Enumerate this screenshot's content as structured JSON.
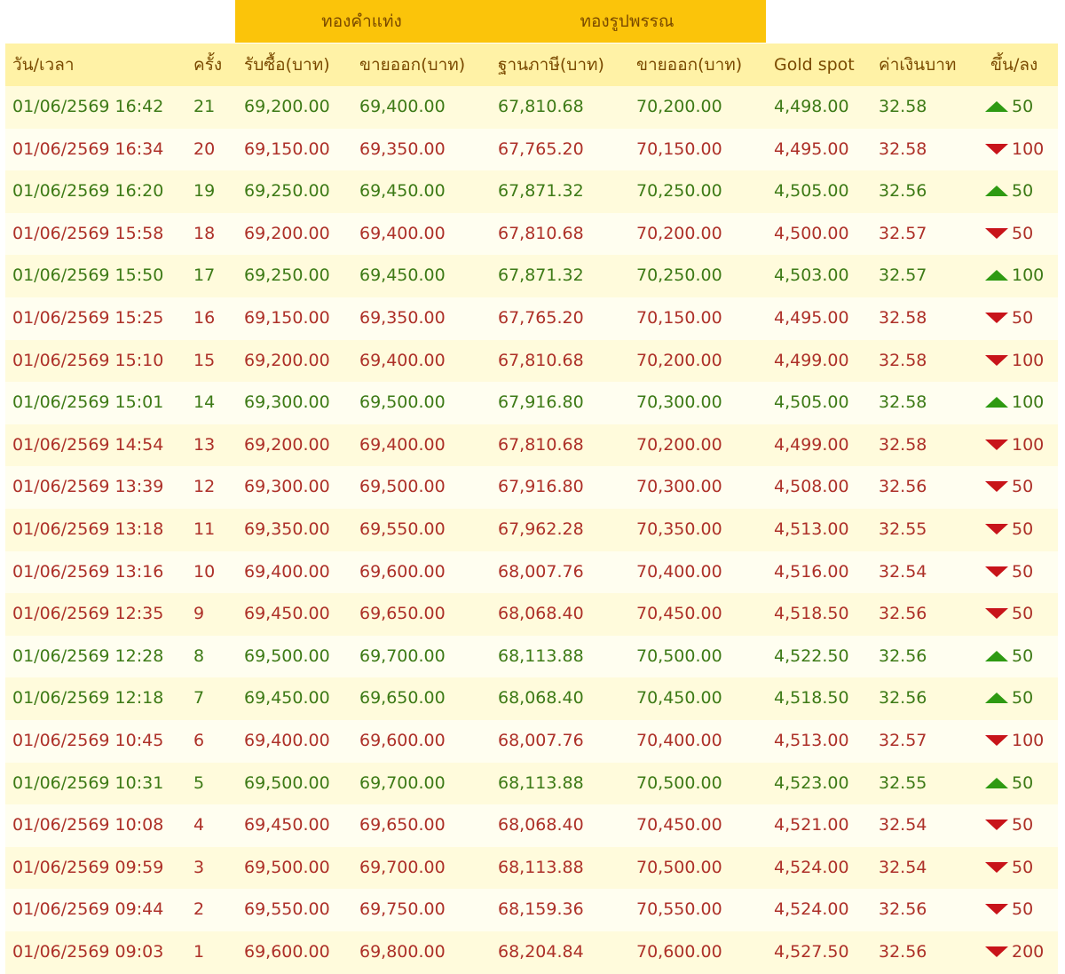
{
  "header": {
    "groups": [
      "ทองคำแท่ง",
      "ทองรูปพรรณ"
    ],
    "columns": [
      "วัน/เวลา",
      "ครั้ง",
      "รับซื้อ(บาท)",
      "ขายออก(บาท)",
      "ฐานภาษี(บาท)",
      "ขายออก(บาท)",
      "Gold spot",
      "ค่าเงินบาท",
      "ขึ้น/ลง"
    ]
  },
  "table": {
    "rows": [
      {
        "cells": [
          "01/06/2569 16:42",
          "21",
          "69,200.00",
          "69,400.00",
          "67,810.68",
          "70,200.00",
          "4,498.00",
          "32.58",
          "50"
        ],
        "direction": "up"
      },
      {
        "cells": [
          "01/06/2569 16:34",
          "20",
          "69,150.00",
          "69,350.00",
          "67,765.20",
          "70,150.00",
          "4,495.00",
          "32.58",
          "100"
        ],
        "direction": "down"
      },
      {
        "cells": [
          "01/06/2569 16:20",
          "19",
          "69,250.00",
          "69,450.00",
          "67,871.32",
          "70,250.00",
          "4,505.00",
          "32.56",
          "50"
        ],
        "direction": "up"
      },
      {
        "cells": [
          "01/06/2569 15:58",
          "18",
          "69,200.00",
          "69,400.00",
          "67,810.68",
          "70,200.00",
          "4,500.00",
          "32.57",
          "50"
        ],
        "direction": "down"
      },
      {
        "cells": [
          "01/06/2569 15:50",
          "17",
          "69,250.00",
          "69,450.00",
          "67,871.32",
          "70,250.00",
          "4,503.00",
          "32.57",
          "100"
        ],
        "direction": "up"
      },
      {
        "cells": [
          "01/06/2569 15:25",
          "16",
          "69,150.00",
          "69,350.00",
          "67,765.20",
          "70,150.00",
          "4,495.00",
          "32.58",
          "50"
        ],
        "direction": "down"
      },
      {
        "cells": [
          "01/06/2569 15:10",
          "15",
          "69,200.00",
          "69,400.00",
          "67,810.68",
          "70,200.00",
          "4,499.00",
          "32.58",
          "100"
        ],
        "direction": "down"
      },
      {
        "cells": [
          "01/06/2569 15:01",
          "14",
          "69,300.00",
          "69,500.00",
          "67,916.80",
          "70,300.00",
          "4,505.00",
          "32.58",
          "100"
        ],
        "direction": "up"
      },
      {
        "cells": [
          "01/06/2569 14:54",
          "13",
          "69,200.00",
          "69,400.00",
          "67,810.68",
          "70,200.00",
          "4,499.00",
          "32.58",
          "100"
        ],
        "direction": "down"
      },
      {
        "cells": [
          "01/06/2569 13:39",
          "12",
          "69,300.00",
          "69,500.00",
          "67,916.80",
          "70,300.00",
          "4,508.00",
          "32.56",
          "50"
        ],
        "direction": "down"
      },
      {
        "cells": [
          "01/06/2569 13:18",
          "11",
          "69,350.00",
          "69,550.00",
          "67,962.28",
          "70,350.00",
          "4,513.00",
          "32.55",
          "50"
        ],
        "direction": "down"
      },
      {
        "cells": [
          "01/06/2569 13:16",
          "10",
          "69,400.00",
          "69,600.00",
          "68,007.76",
          "70,400.00",
          "4,516.00",
          "32.54",
          "50"
        ],
        "direction": "down"
      },
      {
        "cells": [
          "01/06/2569 12:35",
          "9",
          "69,450.00",
          "69,650.00",
          "68,068.40",
          "70,450.00",
          "4,518.50",
          "32.56",
          "50"
        ],
        "direction": "down"
      },
      {
        "cells": [
          "01/06/2569 12:28",
          "8",
          "69,500.00",
          "69,700.00",
          "68,113.88",
          "70,500.00",
          "4,522.50",
          "32.56",
          "50"
        ],
        "direction": "up"
      },
      {
        "cells": [
          "01/06/2569 12:18",
          "7",
          "69,450.00",
          "69,650.00",
          "68,068.40",
          "70,450.00",
          "4,518.50",
          "32.56",
          "50"
        ],
        "direction": "up"
      },
      {
        "cells": [
          "01/06/2569 10:45",
          "6",
          "69,400.00",
          "69,600.00",
          "68,007.76",
          "70,400.00",
          "4,513.00",
          "32.57",
          "100"
        ],
        "direction": "down"
      },
      {
        "cells": [
          "01/06/2569 10:31",
          "5",
          "69,500.00",
          "69,700.00",
          "68,113.88",
          "70,500.00",
          "4,523.00",
          "32.55",
          "50"
        ],
        "direction": "up"
      },
      {
        "cells": [
          "01/06/2569 10:08",
          "4",
          "69,450.00",
          "69,650.00",
          "68,068.40",
          "70,450.00",
          "4,521.00",
          "32.54",
          "50"
        ],
        "direction": "down"
      },
      {
        "cells": [
          "01/06/2569 09:59",
          "3",
          "69,500.00",
          "69,700.00",
          "68,113.88",
          "70,500.00",
          "4,524.00",
          "32.54",
          "50"
        ],
        "direction": "down"
      },
      {
        "cells": [
          "01/06/2569 09:44",
          "2",
          "69,550.00",
          "69,750.00",
          "68,159.36",
          "70,550.00",
          "4,524.00",
          "32.56",
          "50"
        ],
        "direction": "down"
      },
      {
        "cells": [
          "01/06/2569 09:03",
          "1",
          "69,600.00",
          "69,800.00",
          "68,204.84",
          "70,600.00",
          "4,527.50",
          "32.56",
          "200"
        ],
        "direction": "down"
      }
    ]
  }
}
